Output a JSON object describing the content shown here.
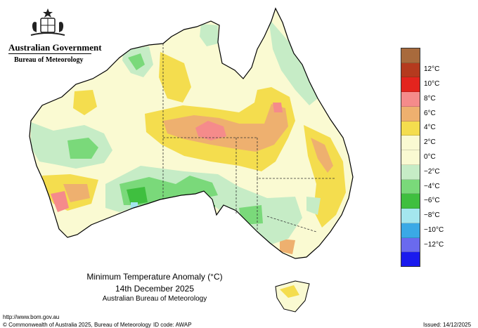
{
  "header": {
    "government": "Australian Government",
    "bureau": "Bureau of Meteorology"
  },
  "map": {
    "title": "Minimum Temperature Anomaly (°C)",
    "date": "14th December 2025",
    "organisation": "Australian Bureau of Meteorology"
  },
  "legend": {
    "unit": "°C",
    "bands": [
      {
        "label": "",
        "color": "#a86a3c"
      },
      {
        "label": "12°C",
        "color": "#b53a1e"
      },
      {
        "label": "10°C",
        "color": "#e3241e"
      },
      {
        "label": "8°C",
        "color": "#f58b8b"
      },
      {
        "label": "6°C",
        "color": "#eeb06f"
      },
      {
        "label": "4°C",
        "color": "#f4dd4e"
      },
      {
        "label": "2°C",
        "color": "#fafad2"
      },
      {
        "label": "0°C",
        "color": "#fafad2"
      },
      {
        "label": "−2°C",
        "color": "#c6ecc6"
      },
      {
        "label": "−4°C",
        "color": "#7ad97a"
      },
      {
        "label": "−6°C",
        "color": "#3fbf3f"
      },
      {
        "label": "−8°C",
        "color": "#a4e6ee"
      },
      {
        "label": "−10°C",
        "color": "#3aa9e6"
      },
      {
        "label": "−12°C",
        "color": "#6a6aee"
      },
      {
        "label": "",
        "color": "#1a1aee"
      }
    ]
  },
  "footer": {
    "url": "http://www.bom.gov.au",
    "copyright": "© Commonwealth of Australia 2025, Bureau of Meteorology",
    "id_code": "ID code: AWAP",
    "issued": "Issued: 14/12/2025"
  }
}
